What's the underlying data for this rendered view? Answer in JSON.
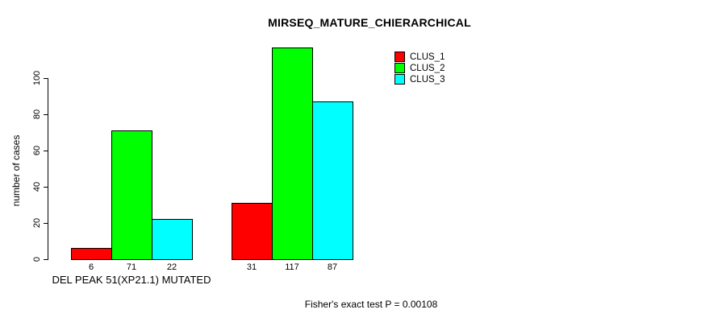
{
  "chart_data": {
    "type": "bar",
    "title": "MIRSEQ_MATURE_CHIERARCHICAL",
    "ylabel": "number of cases",
    "footer": "Fisher's exact test P = 0.00108",
    "categories": [
      "DEL PEAK 51(XP21.1) MUTATED",
      ""
    ],
    "series": [
      {
        "name": "CLUS_1",
        "color": "#ff0000",
        "values": [
          6,
          31
        ]
      },
      {
        "name": "CLUS_2",
        "color": "#00ff00",
        "values": [
          71,
          117
        ]
      },
      {
        "name": "CLUS_3",
        "color": "#00ffff",
        "values": [
          22,
          87
        ]
      }
    ],
    "yticks": [
      0,
      20,
      40,
      60,
      80,
      100
    ],
    "ylim": [
      0,
      117
    ],
    "grid": false,
    "legend_position": "top-right",
    "bar_value_labels_shown": true
  }
}
